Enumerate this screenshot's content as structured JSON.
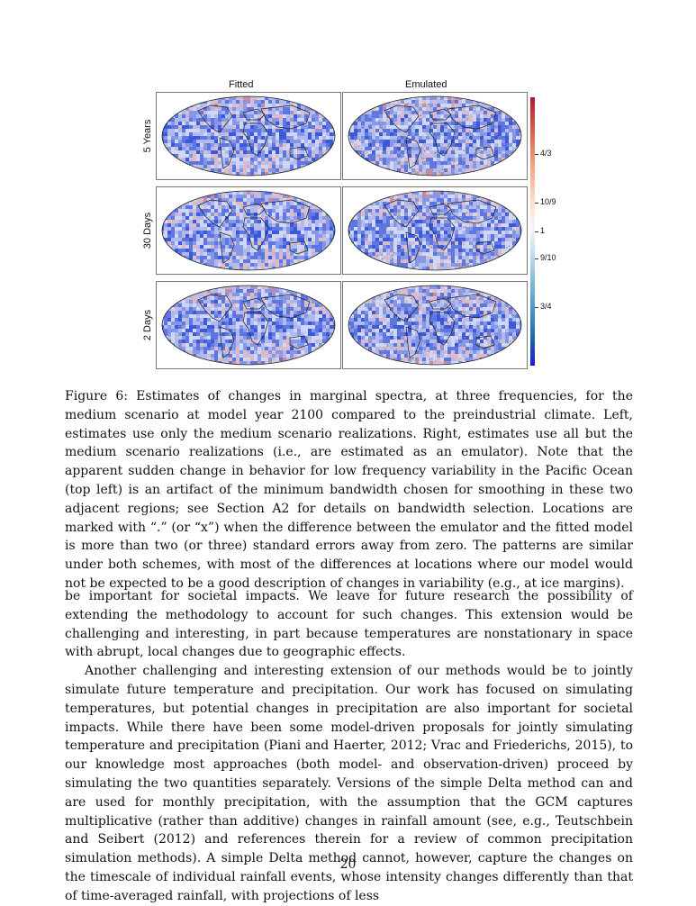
{
  "figure": {
    "col_headers": [
      "Fitted",
      "Emulated"
    ],
    "row_labels": [
      "5 Years",
      "30 Days",
      "2 Days"
    ],
    "colorbar": {
      "tick_labels": [
        "4/3",
        "10/9",
        "1",
        "9/10",
        "3/4"
      ],
      "tick_values": [
        1.3333,
        1.1111,
        1.0,
        0.9,
        0.75
      ],
      "colors": {
        "high": "#b2182b",
        "mid": "#f7f7f7",
        "low": "#1a1ad0"
      }
    }
  },
  "caption": "Figure 6: Estimates of changes in marginal spectra, at three frequencies, for the medium scenario at model year 2100 compared to the preindustrial climate. Left, estimates use only the medium scenario realizations. Right, estimates use all but the medium scenario realizations (i.e., are estimated as an emulator). Note that the apparent sudden change in behavior for low frequency variability in the Pacific Ocean (top left) is an artifact of the minimum bandwidth chosen for smoothing in these two adjacent regions; see Section A2 for details on bandwidth selection. Locations are marked with “.” (or “x”) when the difference between the emulator and the fitted model is more than two (or three) standard errors away from zero. The patterns are similar under both schemes, with most of the differences at locations where our model would not be expected to be a good description of changes in variability (e.g., at ice margins).",
  "body": {
    "p1": "be important for societal impacts. We leave for future research the possibility of extending the methodology to account for such changes. This extension would be challenging and interesting, in part because temperatures are nonstationary in space with abrupt, local changes due to geographic effects.",
    "p2": "Another challenging and interesting extension of our methods would be to jointly simulate future temperature and precipitation. Our work has focused on simulating temperatures, but potential changes in precipitation are also important for societal impacts. While there have been some model-driven proposals for jointly simulating temperature and precipitation (Piani and Haerter, 2012; Vrac and Friederichs, 2015), to our knowledge most approaches (both model- and observation-driven) proceed by simulating the two quantities separately. Versions of the simple Delta method can and are used for monthly precipitation, with the assumption that the GCM captures multiplicative (rather than additive) changes in rainfall amount (see, e.g., Teutschbein and Seibert (2012) and references therein for a review of common precipitation simulation methods). A simple Delta method cannot, however, capture the changes on the timescale of individual rainfall events, whose intensity changes differently than that of time-averaged rainfall, with projections of less"
  },
  "page_number": "20"
}
